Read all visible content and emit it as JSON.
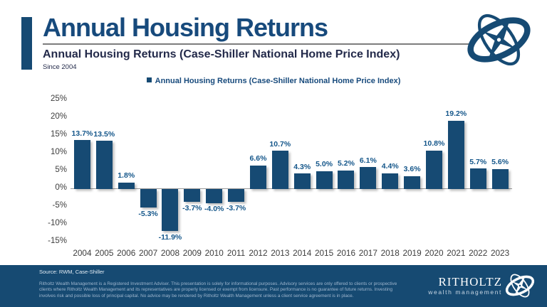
{
  "header": {
    "title": "Annual Housing Returns",
    "subtitle": "Annual Housing Returns (Case-Shiller National Home Price Index)",
    "since": "Since 2004"
  },
  "legend": {
    "label": "Annual Housing Returns (Case-Shiller National Home Price Index)"
  },
  "chart_data": {
    "type": "bar",
    "title": "Annual Housing Returns (Case-Shiller National Home Price Index)",
    "categories": [
      "2004",
      "2005",
      "2006",
      "2007",
      "2008",
      "2009",
      "2010",
      "2011",
      "2012",
      "2013",
      "2014",
      "2015",
      "2016",
      "2017",
      "2018",
      "2019",
      "2020",
      "2021",
      "2022",
      "2023"
    ],
    "values": [
      13.7,
      13.5,
      1.8,
      -5.3,
      -11.9,
      -3.7,
      -4.0,
      -3.7,
      6.6,
      10.7,
      4.3,
      5.0,
      5.2,
      6.1,
      4.4,
      3.6,
      10.8,
      19.2,
      5.7,
      5.6
    ],
    "value_labels": [
      "13.7%",
      "13.5%",
      "1.8%",
      "-5.3%",
      "-11.9%",
      "-3.7%",
      "-4.0%",
      "-3.7%",
      "6.6%",
      "10.7%",
      "4.3%",
      "5.0%",
      "5.2%",
      "6.1%",
      "4.4%",
      "3.6%",
      "10.8%",
      "19.2%",
      "5.7%",
      "5.6%"
    ],
    "yticks": [
      25,
      20,
      15,
      10,
      5,
      0,
      -5,
      -10,
      -15
    ],
    "ytick_labels": [
      "25%",
      "20%",
      "15%",
      "10%",
      "5%",
      "0%",
      "-5%",
      "-10%",
      "-15%"
    ],
    "ylim": [
      -15,
      25
    ],
    "xlabel": "",
    "ylabel": "",
    "grid": false,
    "legend_position": "top",
    "bar_color": "#164A73",
    "value_label_color": "#14568A"
  },
  "footer": {
    "source": "Source: RWM, Case-Shiller",
    "disclaimer": "Ritholtz Wealth Management is a Registered Investment Adviser. This presentation is solely for informational purposes. Advisory services are only offered to clients or prospective clients where Ritholtz Wealth Management and its representatives are properly licensed or exempt from licensure. Past performance is no guarantee of future returns. Investing involves risk and possible loss of principal capital. No advice may be rendered by Ritholtz Wealth Management unless a client service agreement is in place.",
    "brand_name": "RITHOLTZ",
    "brand_sub": "wealth management"
  },
  "colors": {
    "navy": "#164A73",
    "title": "#174A7C",
    "subtitle_ink": "#232A4A",
    "axis_text": "#3D3D3D",
    "zero_line": "#9A9A9A",
    "footer_bg": "#164A72",
    "disclaimer_text": "#9FB6CE"
  }
}
